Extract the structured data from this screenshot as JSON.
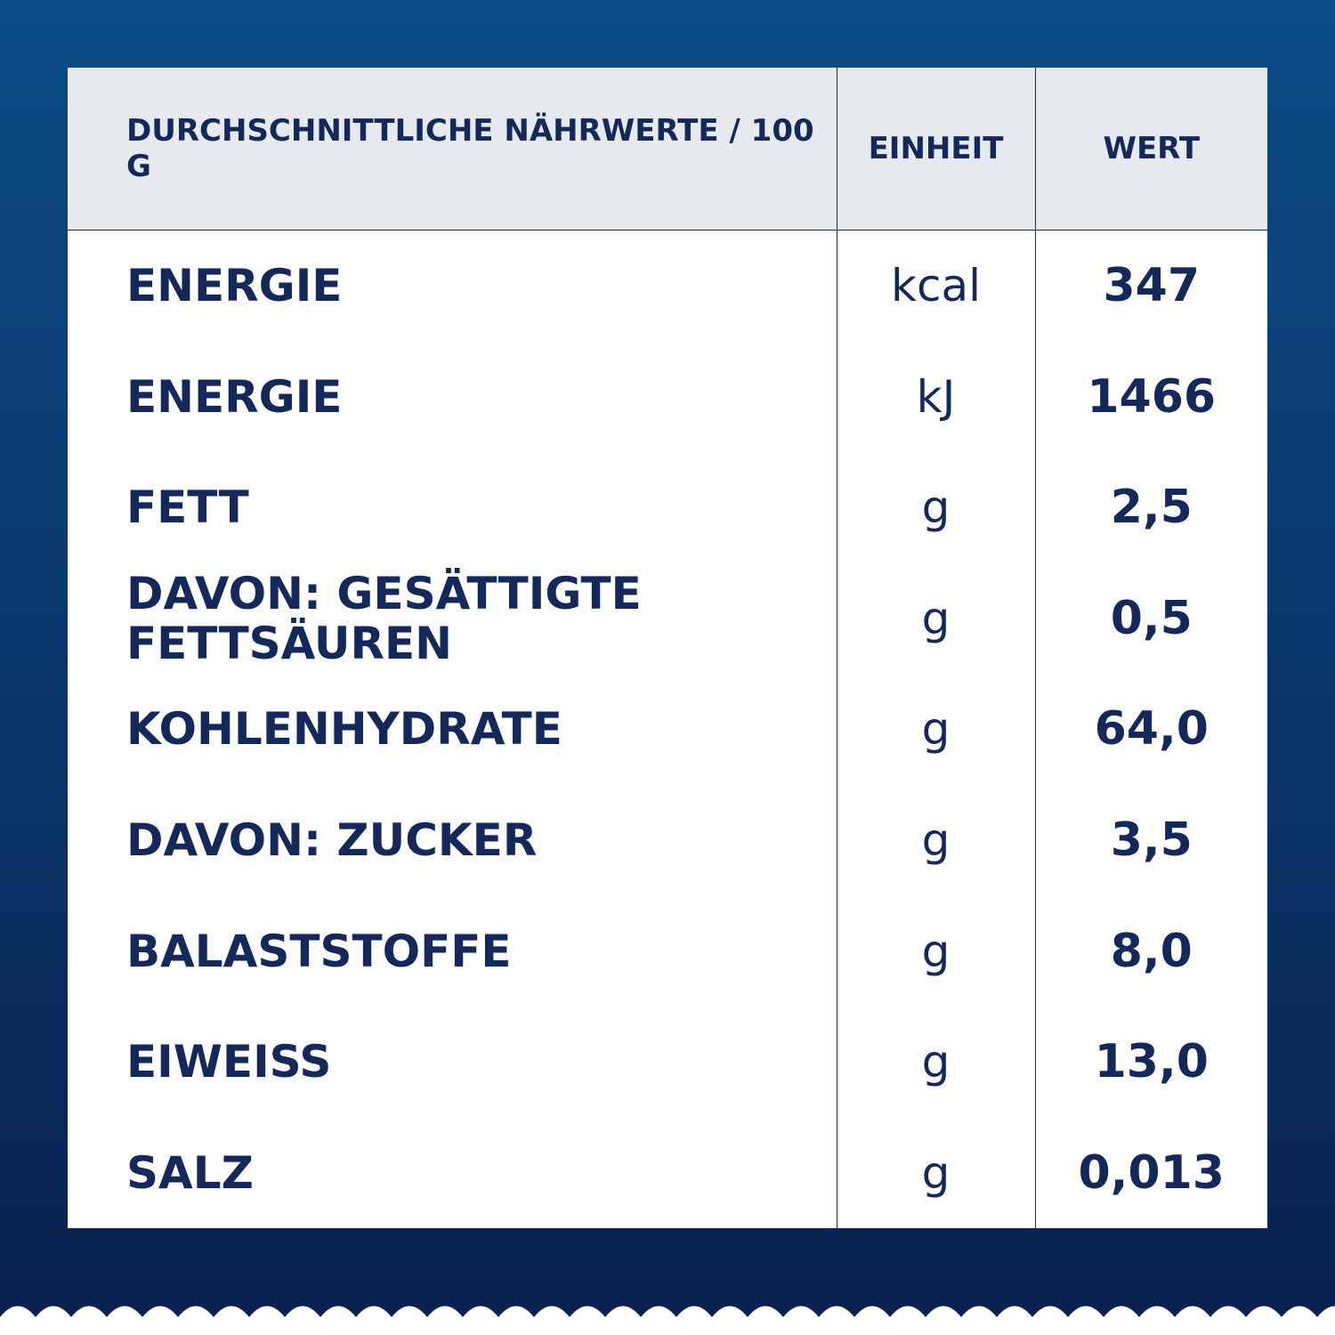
{
  "table": {
    "header": [
      "DURCHSCHNITTLICHE  NÄHRWERTE / 100 G",
      "EINHEIT",
      "WERT"
    ],
    "rows": [
      [
        "ENERGIE",
        "kcal",
        "347"
      ],
      [
        "ENERGIE",
        "kJ",
        "1466"
      ],
      [
        "FETT",
        "g",
        "2,5"
      ],
      [
        "DAVON:  GESÄTTIGTE\nFETTSÄUREN",
        "g",
        "0,5"
      ],
      [
        "KOHLENHYDRATE",
        "g",
        "64,0"
      ],
      [
        "DAVON:  ZUCKER",
        "g",
        "3,5"
      ],
      [
        "BALASTSTOFFE",
        "g",
        "8,0"
      ],
      [
        "EIWEISS",
        "g",
        "13,0"
      ],
      [
        "SALZ",
        "g",
        "0,013"
      ]
    ]
  }
}
